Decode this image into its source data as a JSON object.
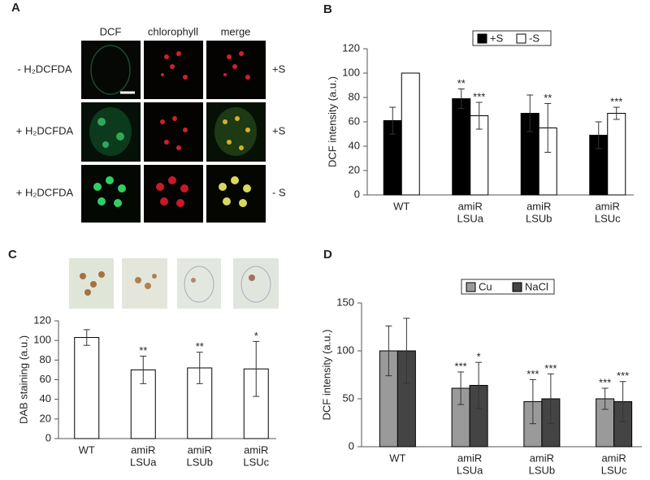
{
  "panel_labels": [
    "A",
    "B",
    "C",
    "D"
  ],
  "image_panel": {
    "columns": [
      "DCF",
      "chlorophyll",
      "merge"
    ],
    "rows": [
      {
        "label": "- H₂DCFDA",
        "condition": "+S"
      },
      {
        "label": "+ H₂DCFDA",
        "condition": "+S"
      },
      {
        "label": "+ H₂DCFDA",
        "condition": "- S"
      }
    ]
  },
  "chart_data": [
    {
      "type": "bar",
      "ylabel": "DCF intensity (a.u.)",
      "categories": [
        [
          "WT"
        ],
        [
          "amiR",
          "LSUa"
        ],
        [
          "amiR",
          "LSUb"
        ],
        [
          "amiR",
          "LSUc"
        ]
      ],
      "series": [
        {
          "name": "+S",
          "color": "#000000",
          "values": [
            61,
            79,
            67,
            49
          ],
          "errors": [
            11,
            8,
            15,
            11
          ],
          "significance": [
            null,
            "**",
            null,
            null
          ]
        },
        {
          "name": "-S",
          "color": "#ffffff",
          "values": [
            100,
            65,
            55,
            67
          ],
          "errors": [
            null,
            11,
            20,
            5
          ],
          "significance": [
            null,
            "***",
            "**",
            "***"
          ]
        }
      ],
      "ylim": [
        0,
        120
      ],
      "yticks": [
        0,
        20,
        40,
        60,
        80,
        100,
        120
      ],
      "legend": "top"
    },
    {
      "type": "bar",
      "ylabel": "DAB staining (a.u.)",
      "categories": [
        [
          "WT"
        ],
        [
          "amiR",
          "LSUa"
        ],
        [
          "amiR",
          "LSUb"
        ],
        [
          "amiR",
          "LSUc"
        ]
      ],
      "series": [
        {
          "color": "#ffffff",
          "values": [
            103,
            70,
            72,
            71
          ],
          "errors": [
            8,
            14,
            16,
            28
          ],
          "significance": [
            null,
            "**",
            "**",
            "*"
          ]
        }
      ],
      "ylim": [
        0,
        120
      ],
      "yticks": [
        0,
        20,
        40,
        60,
        80,
        100,
        120
      ]
    },
    {
      "type": "bar",
      "ylabel": "DCF intensity (a.u.)",
      "categories": [
        [
          "WT"
        ],
        [
          "amiR",
          "LSUa"
        ],
        [
          "amiR",
          "LSUb"
        ],
        [
          "amiR",
          "LSUc"
        ]
      ],
      "series": [
        {
          "name": "Cu",
          "color": "#9a9a9a",
          "values": [
            100,
            61,
            47,
            50
          ],
          "errors": [
            26,
            17,
            23,
            11
          ],
          "significance": [
            null,
            "***",
            "***",
            "***"
          ]
        },
        {
          "name": "NaCl",
          "color": "#444444",
          "values": [
            100,
            64,
            50,
            47
          ],
          "errors": [
            34,
            24,
            26,
            21
          ],
          "significance": [
            null,
            "*",
            "***",
            "***"
          ]
        }
      ],
      "ylim": [
        0,
        150
      ],
      "yticks": [
        0,
        50,
        100,
        150
      ],
      "legend": "top"
    }
  ]
}
